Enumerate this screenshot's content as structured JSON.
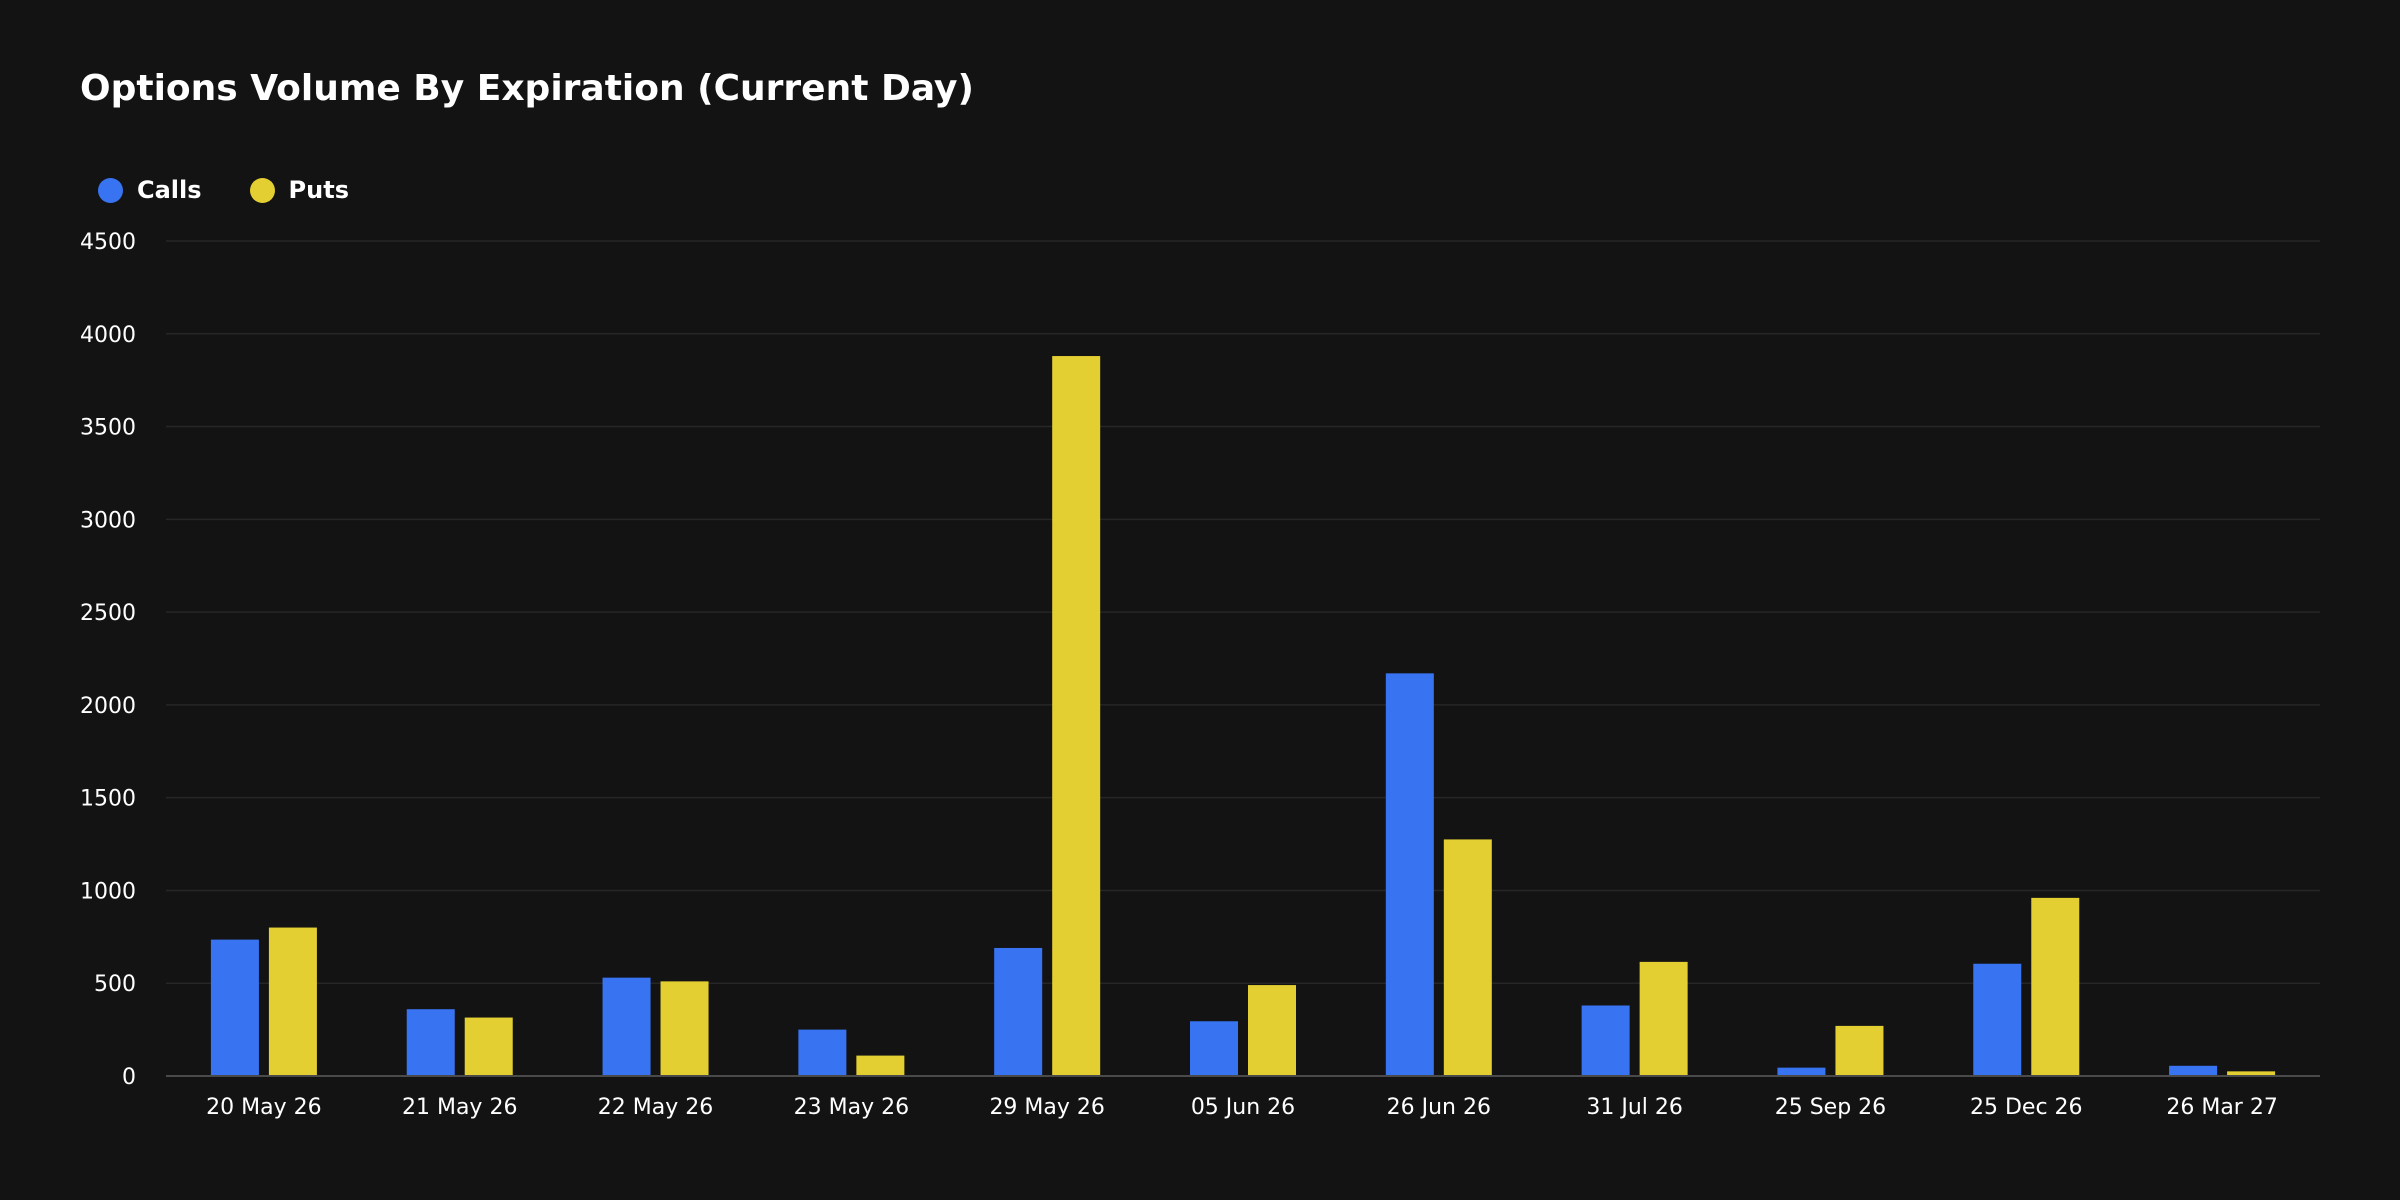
{
  "chart_data": {
    "type": "bar",
    "title": "Options Volume By Expiration (Current Day)",
    "xlabel": "",
    "ylabel": "",
    "categories": [
      "20 May 26",
      "21 May 26",
      "22 May 26",
      "23 May 26",
      "29 May 26",
      "05 Jun 26",
      "26 Jun 26",
      "31 Jul 26",
      "25 Sep 26",
      "25 Dec 26",
      "26 Mar 27"
    ],
    "series": [
      {
        "name": "Calls",
        "color": "#3874f2",
        "values": [
          735,
          360,
          530,
          250,
          690,
          295,
          2170,
          380,
          45,
          605,
          55
        ]
      },
      {
        "name": "Puts",
        "color": "#e3cf32",
        "values": [
          800,
          315,
          510,
          110,
          3880,
          490,
          1275,
          615,
          270,
          960,
          25
        ]
      }
    ],
    "ylim": [
      0,
      4500
    ],
    "yticks": [
      0,
      500,
      1000,
      1500,
      2000,
      2500,
      3000,
      3500,
      4000,
      4500
    ],
    "grid": true,
    "legend_position": "top-left"
  }
}
